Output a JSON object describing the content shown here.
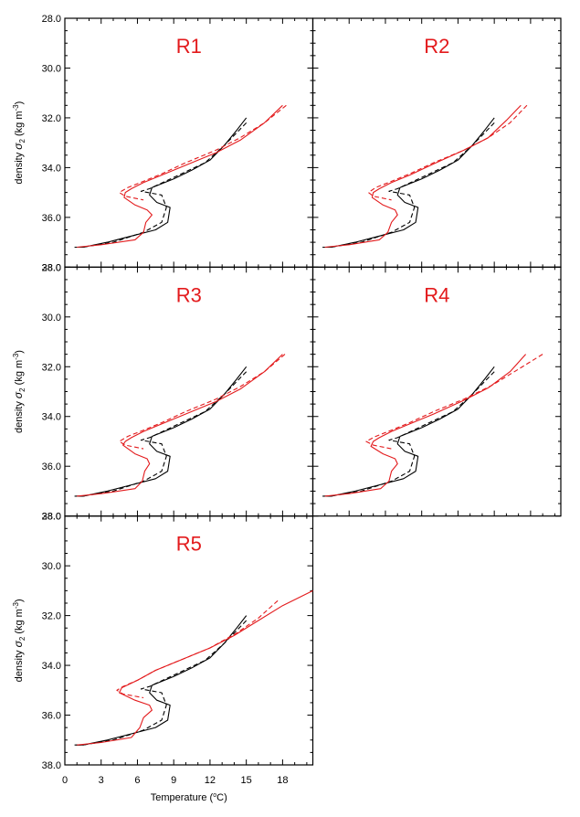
{
  "colors": {
    "obs": "#000000",
    "model": "#e31a1c",
    "frame": "#000000"
  },
  "chart_data": {
    "type": "line",
    "xlabel": "Temperature (",
    "xlabel_unit": "C)",
    "ylabel": "density ",
    "ylabel_symbol": "σ",
    "ylabel_sub": "2",
    "ylabel_unit": " (kg m",
    "ylabel_exp": "-3",
    "ylabel_close": ")",
    "xlim": [
      0,
      20.5
    ],
    "ylim": [
      28,
      38
    ],
    "y_inverted": true,
    "xticks": [
      "0",
      "3",
      "6",
      "9",
      "12",
      "15",
      "18"
    ],
    "xtick_values": [
      0,
      3,
      6,
      9,
      12,
      15,
      18
    ],
    "yticks": [
      "28.0",
      "30.0",
      "32.0",
      "34.0",
      "36.0",
      "38.0"
    ],
    "ytick_values": [
      28,
      30,
      32,
      34,
      36,
      38
    ],
    "legend": "none",
    "panels": [
      {
        "title": "R1",
        "series": [
          {
            "name": "",
            "color": "black",
            "dash": "solid",
            "x": [
              15,
              14.2,
              13.2,
              12,
              10.5,
              9,
              7.2,
              7,
              7.6,
              8.7,
              8.5,
              7.5,
              5.5,
              3.5,
              1.5,
              0.8
            ],
            "y": [
              32,
              32.5,
              33.1,
              33.7,
              34.1,
              34.45,
              34.8,
              35.1,
              35.4,
              35.6,
              36.2,
              36.5,
              36.75,
              37.0,
              37.2,
              37.2
            ]
          },
          {
            "name": "",
            "color": "black",
            "dash": "dashed",
            "x": [
              15,
              13.2,
              11.6,
              7.0,
              6.3,
              8.0,
              8.4,
              8.0,
              6.5,
              4,
              1.5,
              0.8
            ],
            "y": [
              32.2,
              33.1,
              33.8,
              34.85,
              34.95,
              35.1,
              35.6,
              36.2,
              36.6,
              37.0,
              37.2,
              37.2
            ]
          },
          {
            "name": "",
            "color": "red",
            "dash": "solid",
            "x": [
              18,
              16.5,
              14.5,
              12.5,
              10,
              8,
              6.5,
              5.5,
              5,
              4.9,
              5.8,
              6.8,
              7.2,
              6.7,
              6.5,
              5.8,
              3,
              1
            ],
            "y": [
              31.5,
              32.2,
              32.9,
              33.4,
              33.9,
              34.3,
              34.6,
              34.85,
              35.0,
              35.2,
              35.5,
              35.7,
              35.9,
              36.2,
              36.6,
              36.9,
              37.1,
              37.2
            ]
          },
          {
            "name": "",
            "color": "red",
            "dash": "dashed",
            "x": [
              18.3,
              16.5,
              14.5,
              12.5,
              10,
              8,
              6.5,
              5.2,
              4.5,
              5.0,
              6.5
            ],
            "y": [
              31.5,
              32.2,
              32.8,
              33.3,
              33.8,
              34.25,
              34.55,
              34.8,
              35.0,
              35.15,
              35.3
            ]
          }
        ]
      },
      {
        "title": "R2",
        "series": [
          {
            "name": "",
            "color": "black",
            "dash": "solid",
            "x": [
              15,
              14.2,
              13.2,
              12,
              10.5,
              9,
              7.2,
              7,
              7.6,
              8.7,
              8.5,
              7.5,
              5.5,
              3.5,
              1.5,
              0.8
            ],
            "y": [
              32,
              32.5,
              33.1,
              33.7,
              34.1,
              34.45,
              34.8,
              35.1,
              35.4,
              35.6,
              36.2,
              36.5,
              36.75,
              37.0,
              37.2,
              37.2
            ]
          },
          {
            "name": "",
            "color": "black",
            "dash": "dashed",
            "x": [
              15,
              13.2,
              11.6,
              7.0,
              6.3,
              8.0,
              8.4,
              8.0,
              6.5,
              4,
              1.5,
              0.8
            ],
            "y": [
              32.2,
              33.1,
              33.8,
              34.85,
              34.95,
              35.1,
              35.6,
              36.2,
              36.6,
              37.0,
              37.2,
              37.2
            ]
          },
          {
            "name": "",
            "color": "red",
            "dash": "solid",
            "x": [
              17.2,
              16,
              14.5,
              12.5,
              10,
              8,
              6.5,
              5.5,
              5,
              4.9,
              5.8,
              6.8,
              7.0,
              6.5,
              6.2,
              5.5,
              3,
              1
            ],
            "y": [
              31.5,
              32.1,
              32.8,
              33.3,
              33.85,
              34.3,
              34.6,
              34.85,
              35.0,
              35.2,
              35.5,
              35.7,
              35.9,
              36.2,
              36.6,
              36.9,
              37.1,
              37.2
            ]
          },
          {
            "name": "",
            "color": "red",
            "dash": "dashed",
            "x": [
              17.7,
              16.3,
              14.5,
              12.5,
              10,
              8,
              6.5,
              5.2,
              4.6,
              5.0,
              6.5
            ],
            "y": [
              31.5,
              32.2,
              32.8,
              33.3,
              33.8,
              34.25,
              34.55,
              34.8,
              35.0,
              35.15,
              35.3
            ]
          }
        ]
      },
      {
        "title": "R3",
        "series": [
          {
            "name": "",
            "color": "black",
            "dash": "solid",
            "x": [
              15,
              14.2,
              13.2,
              12,
              10.5,
              9,
              7.2,
              7,
              7.6,
              8.7,
              8.5,
              7.5,
              5.5,
              3.5,
              1.5,
              0.8
            ],
            "y": [
              32,
              32.5,
              33.1,
              33.7,
              34.1,
              34.45,
              34.8,
              35.1,
              35.4,
              35.6,
              36.2,
              36.5,
              36.75,
              37.0,
              37.2,
              37.2
            ]
          },
          {
            "name": "",
            "color": "black",
            "dash": "dashed",
            "x": [
              15,
              13.2,
              11.6,
              7.0,
              6.3,
              8.0,
              8.4,
              8.0,
              6.5,
              4,
              1.5,
              0.8
            ],
            "y": [
              32.2,
              33.1,
              33.8,
              34.85,
              34.95,
              35.1,
              35.6,
              36.2,
              36.6,
              37.0,
              37.2,
              37.2
            ]
          },
          {
            "name": "",
            "color": "red",
            "dash": "solid",
            "x": [
              18,
              16.5,
              14.5,
              12.5,
              10,
              8,
              6.5,
              5.5,
              5,
              4.8,
              5.8,
              6.8,
              7.0,
              6.6,
              6.4,
              5.8,
              3,
              1
            ],
            "y": [
              31.5,
              32.2,
              32.9,
              33.4,
              33.9,
              34.3,
              34.6,
              34.85,
              35.0,
              35.15,
              35.5,
              35.7,
              35.9,
              36.2,
              36.6,
              36.9,
              37.1,
              37.2
            ]
          },
          {
            "name": "",
            "color": "red",
            "dash": "dashed",
            "x": [
              18.2,
              16.5,
              14.5,
              12.5,
              10,
              8,
              6.5,
              5.2,
              4.5,
              5.0,
              6.5
            ],
            "y": [
              31.5,
              32.2,
              32.8,
              33.3,
              33.8,
              34.25,
              34.55,
              34.8,
              35.0,
              35.15,
              35.3
            ]
          }
        ]
      },
      {
        "title": "R4",
        "series": [
          {
            "name": "",
            "color": "black",
            "dash": "solid",
            "x": [
              15,
              14.2,
              13.2,
              12,
              10.5,
              9,
              7.2,
              7,
              7.6,
              8.7,
              8.5,
              7.5,
              5.5,
              3.5,
              1.5,
              0.8
            ],
            "y": [
              32,
              32.5,
              33.1,
              33.7,
              34.1,
              34.45,
              34.8,
              35.1,
              35.4,
              35.6,
              36.2,
              36.5,
              36.75,
              37.0,
              37.2,
              37.2
            ]
          },
          {
            "name": "",
            "color": "black",
            "dash": "dashed",
            "x": [
              15,
              13.2,
              11.6,
              7.0,
              6.3,
              8.0,
              8.4,
              8.0,
              6.5,
              4,
              1.5,
              0.8
            ],
            "y": [
              32.2,
              33.1,
              33.8,
              34.85,
              34.95,
              35.1,
              35.6,
              36.2,
              36.6,
              37.0,
              37.2,
              37.2
            ]
          },
          {
            "name": "",
            "color": "red",
            "dash": "solid",
            "x": [
              17.6,
              16.3,
              14.5,
              12.5,
              10,
              8,
              6.5,
              5.5,
              5,
              4.8,
              5.8,
              6.8,
              7.0,
              6.5,
              6.3,
              5.6,
              3,
              1
            ],
            "y": [
              31.5,
              32.2,
              32.85,
              33.35,
              33.9,
              34.3,
              34.6,
              34.85,
              35.0,
              35.2,
              35.5,
              35.7,
              35.9,
              36.2,
              36.6,
              36.9,
              37.1,
              37.2
            ]
          },
          {
            "name": "",
            "color": "red",
            "dash": "dashed",
            "x": [
              19,
              17,
              14.8,
              12.5,
              10,
              8,
              6.5,
              5.2,
              4.4,
              5.0,
              6.5
            ],
            "y": [
              31.5,
              32.1,
              32.75,
              33.3,
              33.8,
              34.25,
              34.55,
              34.8,
              35.0,
              35.15,
              35.3
            ]
          }
        ]
      },
      {
        "title": "R5",
        "series": [
          {
            "name": "",
            "color": "black",
            "dash": "solid",
            "x": [
              15,
              14.2,
              13.2,
              12,
              10.5,
              9,
              7.2,
              7,
              7.6,
              8.7,
              8.5,
              7.5,
              5.5,
              3.5,
              1.5,
              0.8
            ],
            "y": [
              32,
              32.5,
              33.1,
              33.7,
              34.1,
              34.45,
              34.8,
              35.1,
              35.4,
              35.6,
              36.2,
              36.5,
              36.75,
              37.0,
              37.2,
              37.2
            ]
          },
          {
            "name": "",
            "color": "black",
            "dash": "dashed",
            "x": [
              15,
              13.2,
              11.6,
              7.0,
              6.3,
              8.0,
              8.4,
              8.0,
              6.5,
              4,
              1.5,
              0.8
            ],
            "y": [
              32.2,
              33.1,
              33.8,
              34.85,
              34.95,
              35.1,
              35.6,
              36.2,
              36.6,
              37.0,
              37.2,
              37.2
            ]
          },
          {
            "name": "",
            "color": "red",
            "dash": "solid",
            "x": [
              20.5,
              18,
              16,
              14,
              12,
              9.5,
              7.5,
              6,
              4.7,
              4.5,
              5.8,
              7.0,
              7.2,
              6.5,
              6.2,
              5.5,
              3,
              1
            ],
            "y": [
              31.0,
              31.6,
              32.2,
              32.8,
              33.3,
              33.8,
              34.2,
              34.6,
              34.9,
              35.1,
              35.4,
              35.6,
              35.8,
              36.1,
              36.5,
              36.9,
              37.1,
              37.2
            ]
          },
          {
            "name": "",
            "color": "red",
            "dash": "dashed",
            "x": [
              17.6,
              16,
              14.2,
              12,
              9.5,
              7.5,
              6,
              4.8,
              4.3,
              4.8,
              6.5
            ],
            "y": [
              31.4,
              32.1,
              32.7,
              33.3,
              33.8,
              34.2,
              34.6,
              34.85,
              35.0,
              35.15,
              35.3
            ]
          }
        ]
      }
    ]
  }
}
